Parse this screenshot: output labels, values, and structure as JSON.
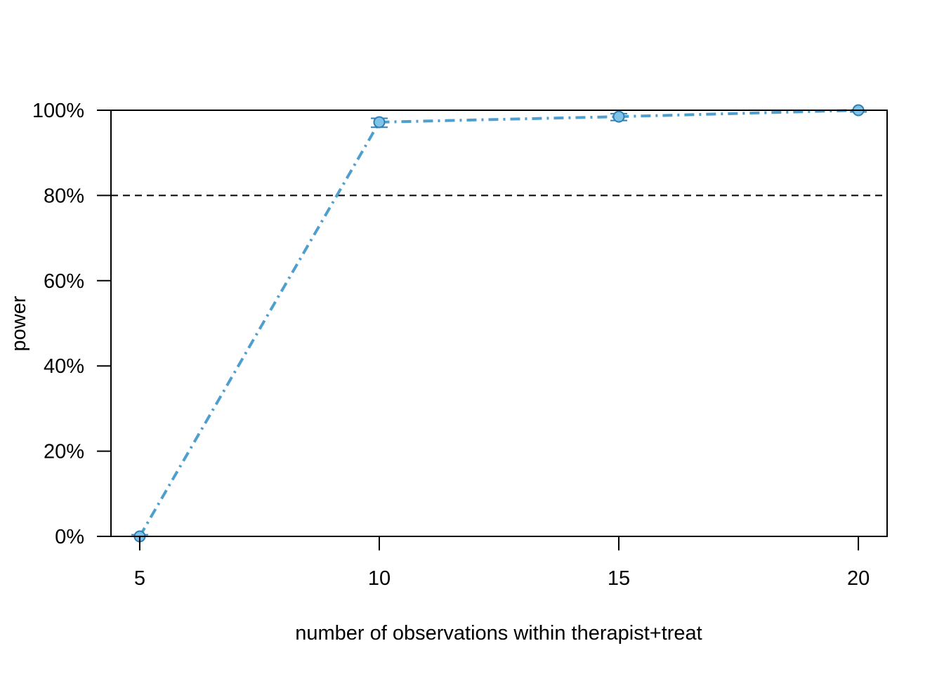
{
  "chart_data": {
    "type": "line",
    "title": "",
    "xlabel": "number of observations within therapist+treat",
    "ylabel": "power",
    "x": [
      5,
      10,
      15,
      20
    ],
    "series": [
      {
        "values": [
          0.0,
          97.2,
          98.5,
          100.0
        ],
        "ci_lower": [
          0.0,
          96.0,
          97.6,
          99.6
        ],
        "ci_upper": [
          0.4,
          98.1,
          99.2,
          100.0
        ],
        "color": "#4f9fce",
        "marker_fill": "#7fc4e8",
        "marker_stroke": "#2f7fb2",
        "line_style": "dash-dot"
      }
    ],
    "xlim": [
      4.4,
      20.6
    ],
    "ylim": [
      0,
      100
    ],
    "xticks": [
      5,
      10,
      15,
      20
    ],
    "xtick_labels": [
      "5",
      "10",
      "15",
      "20"
    ],
    "yticks": [
      0,
      20,
      40,
      60,
      80,
      100
    ],
    "ytick_labels": [
      "0%",
      "20%",
      "40%",
      "60%",
      "80%",
      "100%"
    ],
    "reference_line": {
      "y": 80,
      "style": "dashed",
      "color": "#000000"
    },
    "grid": false,
    "legend": "none"
  }
}
